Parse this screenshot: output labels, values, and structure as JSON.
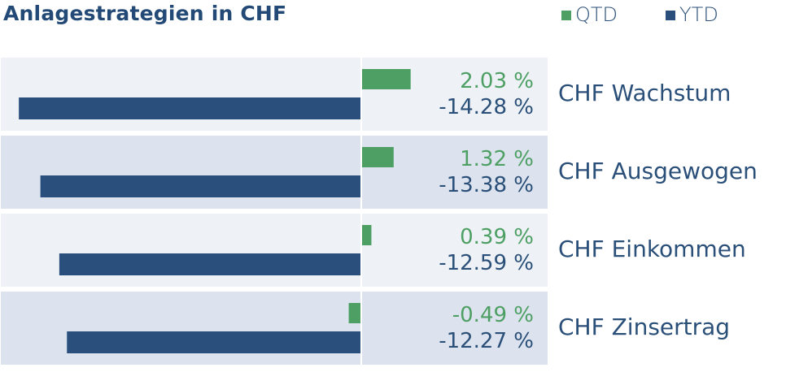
{
  "title": "Anlagestrategien in CHF",
  "colors": {
    "qtd": "#4d9f63",
    "ytd": "#2a4f7d",
    "rowLight": "#eef2f7",
    "rowDark": "#dde3ee",
    "text": "#2a4f78"
  },
  "chart_data": {
    "type": "bar",
    "orientation": "horizontal",
    "categories": [
      "CHF Wachstum",
      "CHF Ausgewogen",
      "CHF Einkommen",
      "CHF Zinsertrag"
    ],
    "series": [
      {
        "name": "QTD",
        "values": [
          2.03,
          1.32,
          0.39,
          -0.49
        ],
        "labels": [
          "2.03 %",
          "1.32 %",
          "0.39 %",
          "-0.49 %"
        ]
      },
      {
        "name": "YTD",
        "values": [
          -14.28,
          -13.38,
          -12.59,
          -12.27
        ],
        "labels": [
          "-14.28 %",
          "-13.38 %",
          "-12.59 %",
          "-12.27 %"
        ]
      }
    ],
    "legend_position": "top-right"
  }
}
